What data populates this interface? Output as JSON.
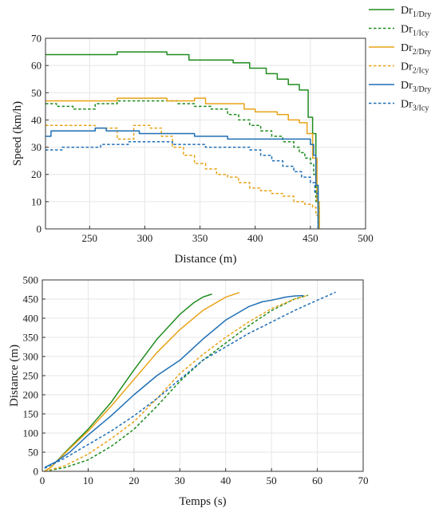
{
  "chart_data": [
    {
      "type": "line",
      "xlabel": "Distance (m)",
      "ylabel": "Speed (km/h)",
      "xlim": [
        210,
        500
      ],
      "ylim": [
        0,
        70
      ],
      "xticks": [
        250,
        300,
        350,
        400,
        450,
        500
      ],
      "yticks": [
        0,
        10,
        20,
        30,
        40,
        50,
        60,
        70
      ],
      "grid": true,
      "legend": "outside-top-right",
      "step": true,
      "series": [
        {
          "name": "Dr",
          "sub": "1/Dry",
          "color": "#1f8c1f",
          "dash": "solid",
          "x": [
            210,
            275,
            300,
            320,
            340,
            380,
            395,
            410,
            420,
            430,
            440,
            448,
            452,
            455,
            457,
            458
          ],
          "y": [
            64,
            65,
            65,
            64,
            62,
            61,
            59,
            57,
            55,
            53,
            51,
            41,
            35,
            16,
            8,
            0
          ]
        },
        {
          "name": "Dr",
          "sub": "1/Icy",
          "color": "#1f8c1f",
          "dash": "dashed",
          "x": [
            210,
            220,
            235,
            255,
            275,
            300,
            330,
            345,
            360,
            375,
            385,
            395,
            405,
            415,
            425,
            435,
            440,
            445,
            450,
            453,
            455,
            457
          ],
          "y": [
            46,
            45,
            44,
            46,
            47,
            47,
            46,
            45,
            44,
            42,
            40,
            38,
            36,
            34,
            32,
            30,
            28,
            26,
            24,
            20,
            10,
            0
          ]
        },
        {
          "name": "Dr",
          "sub": "2/Dry",
          "color": "#e8a317",
          "dash": "solid",
          "x": [
            210,
            275,
            320,
            335,
            345,
            355,
            380,
            390,
            400,
            420,
            430,
            440,
            447,
            452,
            456,
            458
          ],
          "y": [
            47,
            48,
            47,
            47,
            48,
            46,
            46,
            44,
            43,
            42,
            40,
            39,
            35,
            26,
            10,
            0
          ]
        },
        {
          "name": "Dr",
          "sub": "2/Icy",
          "color": "#e8a317",
          "dash": "dashed",
          "x": [
            210,
            235,
            255,
            275,
            290,
            305,
            315,
            325,
            335,
            345,
            355,
            365,
            375,
            385,
            395,
            405,
            415,
            425,
            435,
            445,
            452,
            455,
            458
          ],
          "y": [
            38,
            38,
            37,
            33,
            38,
            37,
            34,
            30,
            27,
            24,
            22,
            20,
            19,
            17,
            15,
            14,
            13,
            12,
            10,
            9,
            8,
            5,
            0
          ]
        },
        {
          "name": "Dr",
          "sub": "3/Dry",
          "color": "#1f6fb5",
          "dash": "solid",
          "x": [
            210,
            215,
            255,
            265,
            295,
            345,
            375,
            425,
            445,
            450,
            453,
            455,
            457
          ],
          "y": [
            34,
            36,
            37,
            36,
            35,
            34,
            33,
            33,
            33,
            31,
            27,
            16,
            0
          ]
        },
        {
          "name": "Dr",
          "sub": "3/Icy",
          "color": "#1f6fb5",
          "dash": "dashed",
          "x": [
            210,
            225,
            260,
            285,
            325,
            355,
            385,
            395,
            405,
            415,
            425,
            435,
            442,
            450,
            454,
            457
          ],
          "y": [
            29,
            30,
            31,
            32,
            31,
            30,
            30,
            29,
            27,
            25,
            23,
            21,
            19,
            17,
            13,
            0
          ]
        }
      ]
    },
    {
      "type": "line",
      "xlabel": "Temps (s)",
      "ylabel": "Distance (m)",
      "xlim": [
        0,
        70
      ],
      "ylim": [
        0,
        500
      ],
      "xticks": [
        0,
        10,
        20,
        30,
        40,
        50,
        60,
        70
      ],
      "yticks": [
        0,
        50,
        100,
        150,
        200,
        250,
        300,
        350,
        400,
        450,
        500
      ],
      "grid": true,
      "step": false,
      "series": [
        {
          "name": "Dr",
          "sub": "1/Dry",
          "color": "#1f8c1f",
          "dash": "solid",
          "x": [
            0.5,
            2,
            5,
            10,
            15,
            20,
            25,
            30,
            33,
            35,
            37
          ],
          "y": [
            0,
            12,
            50,
            110,
            180,
            265,
            345,
            410,
            440,
            455,
            463
          ]
        },
        {
          "name": "Dr",
          "sub": "1/Icy",
          "color": "#1f8c1f",
          "dash": "dashed",
          "x": [
            0.5,
            5,
            10,
            15,
            20,
            25,
            30,
            35,
            40,
            45,
            50,
            55,
            58
          ],
          "y": [
            0,
            10,
            30,
            65,
            110,
            170,
            235,
            290,
            335,
            380,
            420,
            450,
            460
          ]
        },
        {
          "name": "Dr",
          "sub": "2/Dry",
          "color": "#e8a317",
          "dash": "solid",
          "x": [
            0.5,
            2,
            5,
            10,
            15,
            20,
            25,
            30,
            35,
            40,
            43
          ],
          "y": [
            0,
            12,
            48,
            105,
            170,
            240,
            310,
            370,
            420,
            455,
            467
          ]
        },
        {
          "name": "Dr",
          "sub": "2/Icy",
          "color": "#e8a317",
          "dash": "dashed",
          "x": [
            0.5,
            5,
            10,
            15,
            20,
            25,
            30,
            35,
            40,
            45,
            50,
            55,
            58
          ],
          "y": [
            0,
            15,
            45,
            85,
            130,
            190,
            255,
            305,
            350,
            390,
            425,
            450,
            460
          ]
        },
        {
          "name": "Dr",
          "sub": "3/Dry",
          "color": "#1f6fb5",
          "dash": "solid",
          "x": [
            0.5,
            3,
            6,
            10,
            15,
            20,
            25,
            30,
            35,
            40,
            45,
            48,
            50,
            53,
            55,
            57
          ],
          "y": [
            10,
            25,
            50,
            95,
            145,
            200,
            250,
            290,
            345,
            395,
            430,
            443,
            447,
            455,
            458,
            459
          ]
        },
        {
          "name": "Dr",
          "sub": "3/Icy",
          "color": "#1f6fb5",
          "dash": "dashed",
          "x": [
            0.5,
            5,
            10,
            15,
            20,
            25,
            30,
            35,
            40,
            45,
            50,
            55,
            60,
            64
          ],
          "y": [
            8,
            35,
            70,
            105,
            145,
            190,
            240,
            290,
            325,
            360,
            390,
            420,
            447,
            468
          ]
        }
      ]
    }
  ]
}
